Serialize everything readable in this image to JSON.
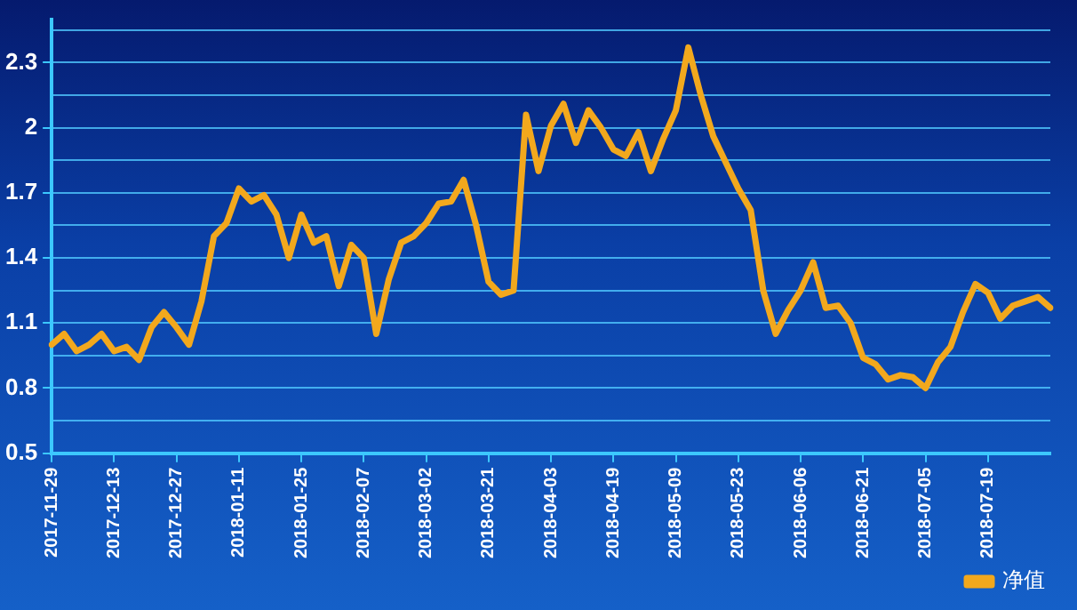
{
  "chart_data": {
    "type": "line",
    "categories": [
      "2017-11-29",
      null,
      null,
      null,
      null,
      "2017-12-13",
      null,
      null,
      null,
      null,
      "2017-12-27",
      null,
      null,
      null,
      null,
      "2018-01-11",
      null,
      null,
      null,
      null,
      "2018-01-25",
      null,
      null,
      null,
      null,
      "2018-02-07",
      null,
      null,
      null,
      null,
      "2018-03-02",
      null,
      null,
      null,
      null,
      "2018-03-21",
      null,
      null,
      null,
      null,
      "2018-04-03",
      null,
      null,
      null,
      null,
      "2018-04-19",
      null,
      null,
      null,
      null,
      "2018-05-09",
      null,
      null,
      null,
      null,
      "2018-05-23",
      null,
      null,
      null,
      null,
      "2018-06-06",
      null,
      null,
      null,
      null,
      "2018-06-21",
      null,
      null,
      null,
      null,
      "2018-07-05",
      null,
      null,
      null,
      null,
      "2018-07-19",
      null,
      null,
      null,
      null,
      null
    ],
    "series": [
      {
        "name": "净值",
        "color": "#f2a81d",
        "values": [
          1.0,
          1.05,
          0.97,
          1.0,
          1.05,
          0.97,
          0.99,
          0.93,
          1.08,
          1.15,
          1.08,
          1.0,
          1.2,
          1.5,
          1.56,
          1.72,
          1.66,
          1.69,
          1.6,
          1.4,
          1.6,
          1.47,
          1.5,
          1.27,
          1.46,
          1.4,
          1.05,
          1.3,
          1.47,
          1.5,
          1.56,
          1.65,
          1.66,
          1.76,
          1.55,
          1.29,
          1.23,
          1.25,
          2.06,
          1.8,
          2.01,
          2.11,
          1.93,
          2.08,
          2.0,
          1.9,
          1.87,
          1.98,
          1.8,
          1.95,
          2.08,
          2.37,
          2.15,
          1.96,
          1.84,
          1.72,
          1.62,
          1.25,
          1.05,
          1.16,
          1.25,
          1.38,
          1.17,
          1.18,
          1.1,
          0.94,
          0.91,
          0.84,
          0.86,
          0.85,
          0.8,
          0.92,
          0.99,
          1.15,
          1.28,
          1.24,
          1.12,
          1.18,
          1.2,
          1.22,
          1.17
        ]
      }
    ],
    "ylim": [
      0.5,
      2.5
    ],
    "yticks": [
      0.5,
      {
        "value": 0.65,
        "label": null
      },
      0.8,
      {
        "value": 0.95,
        "label": null
      },
      1.1,
      {
        "value": 1.25,
        "label": null
      },
      1.4,
      {
        "value": 1.55,
        "label": null
      },
      1.7,
      {
        "value": 1.85,
        "label": null
      },
      2,
      {
        "value": 2.15,
        "label": null
      },
      2.3,
      {
        "value": 2.45,
        "label": null
      }
    ],
    "grid": "y",
    "legend": "bottom right",
    "line_style": "solid",
    "marker": "none"
  }
}
